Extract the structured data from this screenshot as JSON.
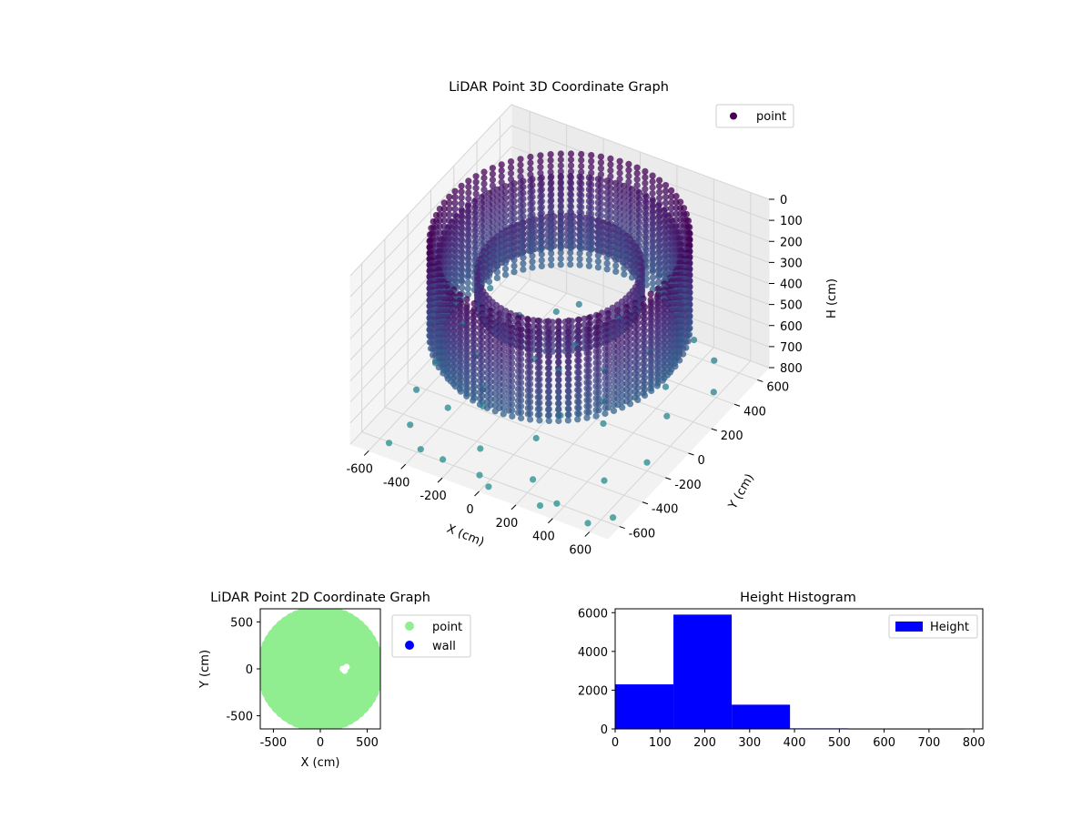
{
  "chart_data": [
    {
      "type": "scatter3d",
      "title": "LiDAR Point 3D Coordinate Graph",
      "xlabel": "X (cm)",
      "ylabel": "Y (cm)",
      "zlabel": "H (cm)",
      "xlim": [
        -700,
        700
      ],
      "ylim": [
        -700,
        700
      ],
      "zlim": [
        0,
        800
      ],
      "z_inverted": true,
      "x_ticks": [
        "-600",
        "-400",
        "-200",
        "0",
        "200",
        "400",
        "600"
      ],
      "y_ticks": [
        "-600",
        "-400",
        "-200",
        "0",
        "200",
        "400",
        "600"
      ],
      "z_ticks": [
        "0",
        "100",
        "200",
        "300",
        "400",
        "500",
        "600",
        "700",
        "800"
      ],
      "grid": true,
      "legend": {
        "position": "top-right",
        "entries": [
          {
            "label": "point",
            "color": "#440154"
          }
        ]
      },
      "colormap": "viridis",
      "series": [
        {
          "name": "point",
          "rings": [
            {
              "radius": 600,
              "h_top": 0,
              "h_bottom": 450
            },
            {
              "radius": 560,
              "h_top": 80,
              "h_bottom": 500
            },
            {
              "radius": 380,
              "h_top": 150,
              "h_bottom": 300
            }
          ],
          "points": [
            [
              -560,
              -350,
              700
            ],
            [
              -600,
              -120,
              720
            ],
            [
              -500,
              -500,
              760
            ],
            [
              -420,
              320,
              690
            ],
            [
              -380,
              -600,
              780
            ],
            [
              -300,
              450,
              710
            ],
            [
              -260,
              -250,
              740
            ],
            [
              -200,
              100,
              700
            ],
            [
              -150,
              -450,
              790
            ],
            [
              -100,
              300,
              720
            ],
            [
              -60,
              -600,
              800
            ],
            [
              0,
              520,
              690
            ],
            [
              60,
              -300,
              760
            ],
            [
              120,
              200,
              710
            ],
            [
              180,
              -520,
              790
            ],
            [
              240,
              400,
              700
            ],
            [
              300,
              -100,
              730
            ],
            [
              360,
              -600,
              800
            ],
            [
              420,
              250,
              720
            ],
            [
              480,
              -380,
              780
            ],
            [
              540,
              480,
              690
            ],
            [
              600,
              -200,
              760
            ],
            [
              -620,
              150,
              700
            ],
            [
              -480,
              40,
              740
            ],
            [
              -340,
              -120,
              760
            ],
            [
              -220,
              520,
              690
            ],
            [
              -80,
              120,
              730
            ],
            [
              80,
              -120,
              750
            ],
            [
              220,
              20,
              720
            ],
            [
              380,
              560,
              690
            ],
            [
              520,
              100,
              740
            ],
            [
              640,
              -560,
              800
            ],
            [
              -540,
              -620,
              790
            ],
            [
              -260,
              -600,
              790
            ],
            [
              20,
              -650,
              800
            ],
            [
              300,
              -650,
              800
            ],
            [
              560,
              -650,
              800
            ],
            [
              -640,
              420,
              690
            ],
            [
              650,
              300,
              700
            ],
            [
              -420,
              -300,
              770
            ]
          ]
        }
      ]
    },
    {
      "type": "scatter",
      "title": "LiDAR Point 2D Coordinate Graph",
      "xlabel": "X (cm)",
      "ylabel": "Y (cm)",
      "xlim": [
        -640,
        640
      ],
      "ylim": [
        -640,
        640
      ],
      "x_ticks": [
        "-500",
        "0",
        "500"
      ],
      "y_ticks": [
        "-500",
        "0",
        "500"
      ],
      "legend": {
        "position": "outside-right",
        "entries": [
          {
            "label": "point",
            "color": "#90ee90"
          },
          {
            "label": "wall",
            "color": "#0000ff"
          }
        ]
      },
      "series": [
        {
          "name": "point",
          "color": "#90ee90",
          "shape": "disk",
          "radius": 600,
          "gap_points": [
            [
              240,
              0
            ],
            [
              280,
              20
            ],
            [
              260,
              -20
            ]
          ]
        },
        {
          "name": "wall",
          "color": "#0000ff",
          "points": []
        }
      ]
    },
    {
      "type": "bar",
      "title": "Height Histogram",
      "xlim": [
        0,
        820
      ],
      "ylim": [
        0,
        6200
      ],
      "x_ticks": [
        "0",
        "100",
        "200",
        "300",
        "400",
        "500",
        "600",
        "700",
        "800"
      ],
      "y_ticks": [
        "0",
        "2000",
        "4000",
        "6000"
      ],
      "legend": {
        "position": "top-right",
        "entries": [
          {
            "label": "Height",
            "color": "#0000ff"
          }
        ]
      },
      "series": [
        {
          "name": "Height",
          "color": "#0000ff",
          "bins": [
            [
              0,
              130,
              2300
            ],
            [
              130,
              260,
              5900
            ],
            [
              260,
              390,
              1250
            ],
            [
              390,
              520,
              30
            ],
            [
              520,
              650,
              20
            ],
            [
              650,
              780,
              20
            ]
          ]
        }
      ]
    }
  ]
}
